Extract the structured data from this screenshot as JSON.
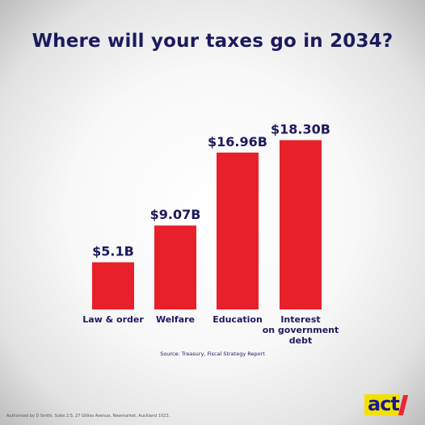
{
  "title": "Where will your taxes go in 2034?",
  "source": "Source: Treasury, Fiscal Strategy Report",
  "authorised": "Authorised by D Smith, Suite 2.5, 27 Gillies Avenue, Newmarket, Auckland 1023.",
  "logo": {
    "text": "act",
    "colors": {
      "box": "#f2e100",
      "text": "#1c1a8a",
      "slash": "#e8262f"
    }
  },
  "colors": {
    "bar": "#e8202a",
    "text": "#1c1a5e"
  },
  "chart_data": {
    "type": "bar",
    "title": "Where will your taxes go in 2034?",
    "categories": [
      [
        "Law & order"
      ],
      [
        "Welfare"
      ],
      [
        "Education"
      ],
      [
        "Interest",
        "on government",
        "debt"
      ]
    ],
    "values": [
      5.1,
      9.07,
      16.96,
      18.3
    ],
    "value_labels": [
      "$5.1B",
      "$9.07B",
      "$16.96B",
      "$18.30B"
    ],
    "unit": "$B",
    "grid": false,
    "legend": "none"
  }
}
